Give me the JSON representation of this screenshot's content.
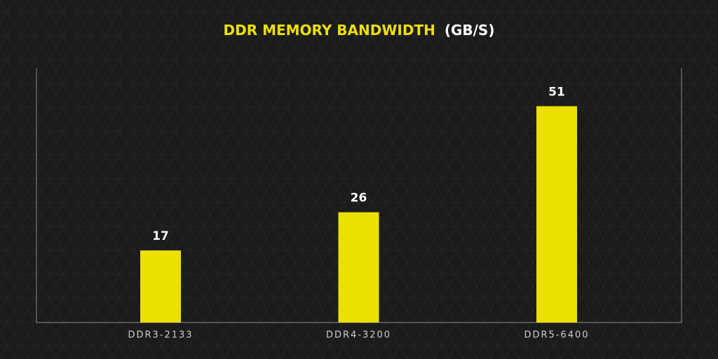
{
  "chart_data": {
    "type": "bar",
    "title": "DDR MEMORY BANDWIDTH",
    "title_unit": "(GB/S)",
    "categories": [
      "DDR3-2133",
      "DDR4-3200",
      "DDR5-6400"
    ],
    "values": [
      17,
      26,
      51
    ],
    "color": "#ebe000",
    "ylim": [
      0,
      60
    ]
  }
}
